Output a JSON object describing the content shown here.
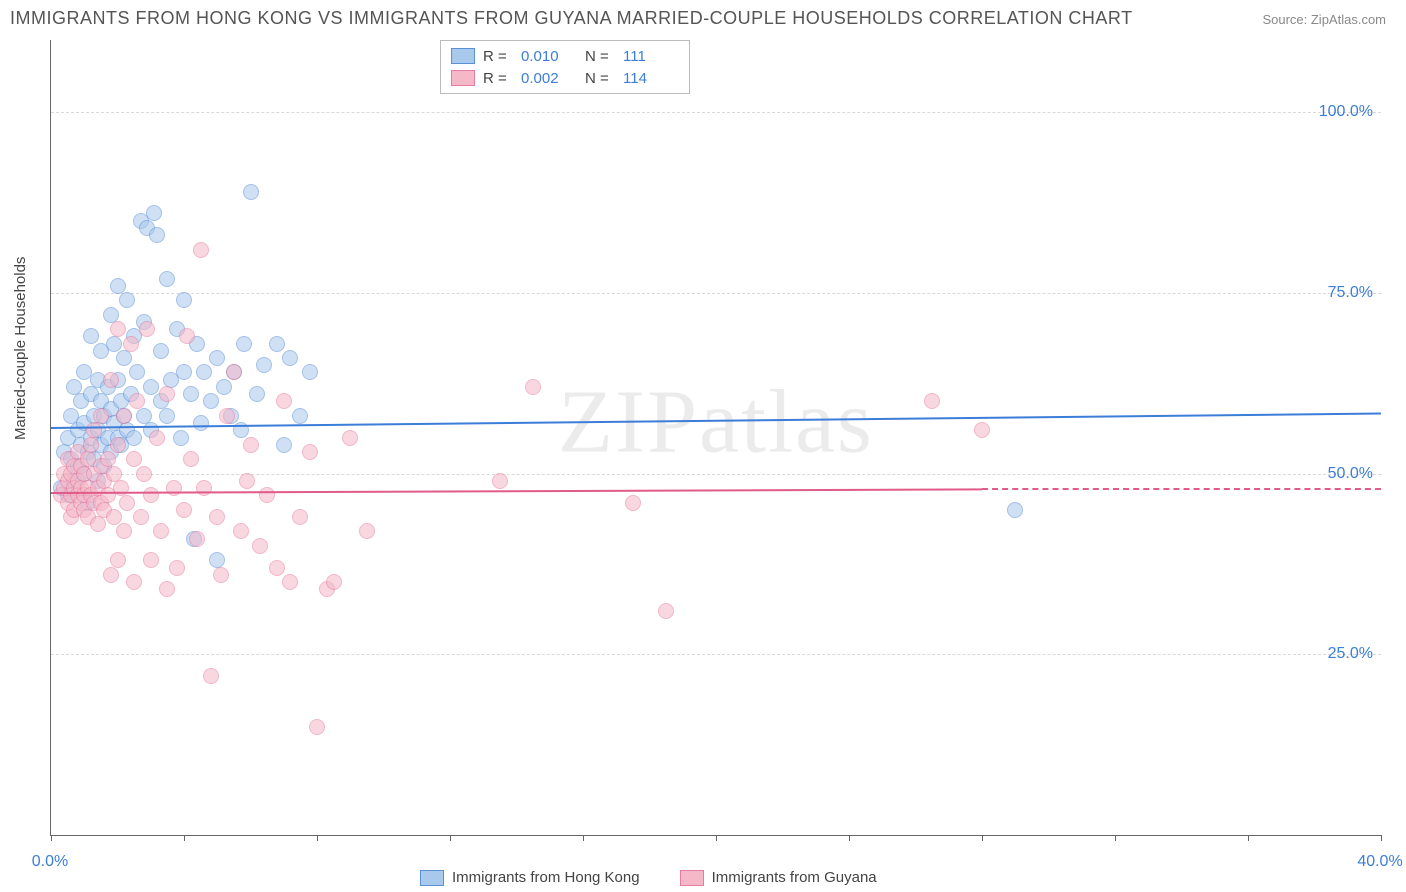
{
  "title": "IMMIGRANTS FROM HONG KONG VS IMMIGRANTS FROM GUYANA MARRIED-COUPLE HOUSEHOLDS CORRELATION CHART",
  "source": "Source: ZipAtlas.com",
  "watermark": "ZIPatlas",
  "ylabel": "Married-couple Households",
  "chart": {
    "type": "scatter",
    "xlim": [
      0,
      40
    ],
    "ylim": [
      0,
      110
    ],
    "x_ticks": [
      0,
      4,
      8,
      12,
      16,
      20,
      24,
      28,
      32,
      36,
      40
    ],
    "x_tick_labels": {
      "0": "0.0%",
      "40": "40.0%"
    },
    "y_gridlines": [
      25,
      50,
      75,
      100
    ],
    "y_tick_labels": {
      "25": "25.0%",
      "50": "50.0%",
      "75": "75.0%",
      "100": "100.0%"
    },
    "grid_color": "#d9d9d9",
    "background_color": "#ffffff",
    "axis_color": "#666666",
    "tick_label_color": "#3b7dd8",
    "point_radius": 7,
    "point_opacity": 0.55
  },
  "series": [
    {
      "name": "Immigrants from Hong Kong",
      "fill": "#a8c8ec",
      "stroke": "#5b8fd6",
      "line_color": "#3b7dd8",
      "r_label": "R =",
      "r_value": "0.010",
      "n_label": "N =",
      "n_value": "111",
      "trend": {
        "y_start": 56.5,
        "y_end": 58.5,
        "x_start": 0,
        "x_end": 40
      },
      "points": [
        [
          0.3,
          48
        ],
        [
          0.4,
          53
        ],
        [
          0.5,
          47
        ],
        [
          0.5,
          55
        ],
        [
          0.6,
          52
        ],
        [
          0.6,
          58
        ],
        [
          0.7,
          49
        ],
        [
          0.7,
          62
        ],
        [
          0.8,
          51
        ],
        [
          0.8,
          56
        ],
        [
          0.9,
          54
        ],
        [
          0.9,
          60
        ],
        [
          1.0,
          50
        ],
        [
          1.0,
          57
        ],
        [
          1.0,
          64
        ],
        [
          1.1,
          53
        ],
        [
          1.1,
          46
        ],
        [
          1.2,
          55
        ],
        [
          1.2,
          61
        ],
        [
          1.2,
          69
        ],
        [
          1.3,
          52
        ],
        [
          1.3,
          58
        ],
        [
          1.4,
          56
        ],
        [
          1.4,
          63
        ],
        [
          1.4,
          49
        ],
        [
          1.5,
          54
        ],
        [
          1.5,
          60
        ],
        [
          1.5,
          67
        ],
        [
          1.6,
          58
        ],
        [
          1.6,
          51
        ],
        [
          1.7,
          55
        ],
        [
          1.7,
          62
        ],
        [
          1.8,
          53
        ],
        [
          1.8,
          59
        ],
        [
          1.8,
          72
        ],
        [
          1.9,
          68
        ],
        [
          1.9,
          57
        ],
        [
          2.0,
          55
        ],
        [
          2.0,
          63
        ],
        [
          2.0,
          76
        ],
        [
          2.1,
          60
        ],
        [
          2.1,
          54
        ],
        [
          2.2,
          58
        ],
        [
          2.2,
          66
        ],
        [
          2.3,
          74
        ],
        [
          2.3,
          56
        ],
        [
          2.4,
          61
        ],
        [
          2.5,
          69
        ],
        [
          2.5,
          55
        ],
        [
          2.6,
          64
        ],
        [
          2.7,
          85
        ],
        [
          2.8,
          58
        ],
        [
          2.8,
          71
        ],
        [
          2.9,
          84
        ],
        [
          3.0,
          62
        ],
        [
          3.0,
          56
        ],
        [
          3.1,
          86
        ],
        [
          3.2,
          83
        ],
        [
          3.3,
          60
        ],
        [
          3.3,
          67
        ],
        [
          3.5,
          58
        ],
        [
          3.5,
          77
        ],
        [
          3.6,
          63
        ],
        [
          3.8,
          70
        ],
        [
          3.9,
          55
        ],
        [
          4.0,
          64
        ],
        [
          4.0,
          74
        ],
        [
          4.2,
          61
        ],
        [
          4.3,
          41
        ],
        [
          4.4,
          68
        ],
        [
          4.5,
          57
        ],
        [
          4.6,
          64
        ],
        [
          4.8,
          60
        ],
        [
          5.0,
          66
        ],
        [
          5.0,
          38
        ],
        [
          5.2,
          62
        ],
        [
          5.4,
          58
        ],
        [
          5.5,
          64
        ],
        [
          5.7,
          56
        ],
        [
          5.8,
          68
        ],
        [
          6.0,
          89
        ],
        [
          6.2,
          61
        ],
        [
          6.4,
          65
        ],
        [
          6.8,
          68
        ],
        [
          7.0,
          54
        ],
        [
          7.2,
          66
        ],
        [
          7.5,
          58
        ],
        [
          7.8,
          64
        ],
        [
          29.0,
          45
        ]
      ]
    },
    {
      "name": "Immigrants from Guyana",
      "fill": "#f4b8c8",
      "stroke": "#e77ba0",
      "line_color": "#e05a8a",
      "r_label": "R =",
      "r_value": "0.002",
      "n_label": "N =",
      "n_value": "114",
      "trend": {
        "y_start": 47.5,
        "y_end": 48.0,
        "x_start": 0,
        "x_end": 28,
        "dash_to": 40
      },
      "points": [
        [
          0.3,
          47
        ],
        [
          0.4,
          48
        ],
        [
          0.4,
          50
        ],
        [
          0.5,
          46
        ],
        [
          0.5,
          49
        ],
        [
          0.5,
          52
        ],
        [
          0.6,
          47
        ],
        [
          0.6,
          50
        ],
        [
          0.6,
          44
        ],
        [
          0.7,
          48
        ],
        [
          0.7,
          51
        ],
        [
          0.7,
          45
        ],
        [
          0.8,
          47
        ],
        [
          0.8,
          49
        ],
        [
          0.8,
          53
        ],
        [
          0.9,
          46
        ],
        [
          0.9,
          48
        ],
        [
          0.9,
          51
        ],
        [
          1.0,
          47
        ],
        [
          1.0,
          50
        ],
        [
          1.0,
          45
        ],
        [
          1.1,
          48
        ],
        [
          1.1,
          52
        ],
        [
          1.1,
          44
        ],
        [
          1.2,
          47
        ],
        [
          1.2,
          54
        ],
        [
          1.3,
          46
        ],
        [
          1.3,
          50
        ],
        [
          1.3,
          56
        ],
        [
          1.4,
          48
        ],
        [
          1.4,
          43
        ],
        [
          1.5,
          51
        ],
        [
          1.5,
          46
        ],
        [
          1.5,
          58
        ],
        [
          1.6,
          49
        ],
        [
          1.6,
          45
        ],
        [
          1.7,
          52
        ],
        [
          1.7,
          47
        ],
        [
          1.8,
          36
        ],
        [
          1.8,
          63
        ],
        [
          1.9,
          50
        ],
        [
          1.9,
          44
        ],
        [
          2.0,
          38
        ],
        [
          2.0,
          54
        ],
        [
          2.0,
          70
        ],
        [
          2.1,
          48
        ],
        [
          2.2,
          42
        ],
        [
          2.2,
          58
        ],
        [
          2.3,
          46
        ],
        [
          2.4,
          68
        ],
        [
          2.5,
          35
        ],
        [
          2.5,
          52
        ],
        [
          2.6,
          60
        ],
        [
          2.7,
          44
        ],
        [
          2.8,
          50
        ],
        [
          2.9,
          70
        ],
        [
          3.0,
          38
        ],
        [
          3.0,
          47
        ],
        [
          3.2,
          55
        ],
        [
          3.3,
          42
        ],
        [
          3.5,
          34
        ],
        [
          3.5,
          61
        ],
        [
          3.7,
          48
        ],
        [
          3.8,
          37
        ],
        [
          4.0,
          45
        ],
        [
          4.1,
          69
        ],
        [
          4.2,
          52
        ],
        [
          4.4,
          41
        ],
        [
          4.5,
          81
        ],
        [
          4.6,
          48
        ],
        [
          4.8,
          22
        ],
        [
          5.0,
          44
        ],
        [
          5.1,
          36
        ],
        [
          5.3,
          58
        ],
        [
          5.5,
          64
        ],
        [
          5.7,
          42
        ],
        [
          5.9,
          49
        ],
        [
          6.0,
          54
        ],
        [
          6.3,
          40
        ],
        [
          6.5,
          47
        ],
        [
          6.8,
          37
        ],
        [
          7.0,
          60
        ],
        [
          7.2,
          35
        ],
        [
          7.5,
          44
        ],
        [
          7.8,
          53
        ],
        [
          8.0,
          15
        ],
        [
          8.3,
          34
        ],
        [
          8.5,
          35
        ],
        [
          9.0,
          55
        ],
        [
          9.5,
          42
        ],
        [
          13.5,
          49
        ],
        [
          14.5,
          62
        ],
        [
          17.5,
          46
        ],
        [
          18.5,
          31
        ],
        [
          26.5,
          60
        ],
        [
          28.0,
          56
        ]
      ]
    }
  ],
  "legend_bottom": [
    {
      "label": "Immigrants from Hong Kong",
      "fill": "#a8c8ec",
      "stroke": "#5b8fd6"
    },
    {
      "label": "Immigrants from Guyana",
      "fill": "#f4b8c8",
      "stroke": "#e77ba0"
    }
  ]
}
